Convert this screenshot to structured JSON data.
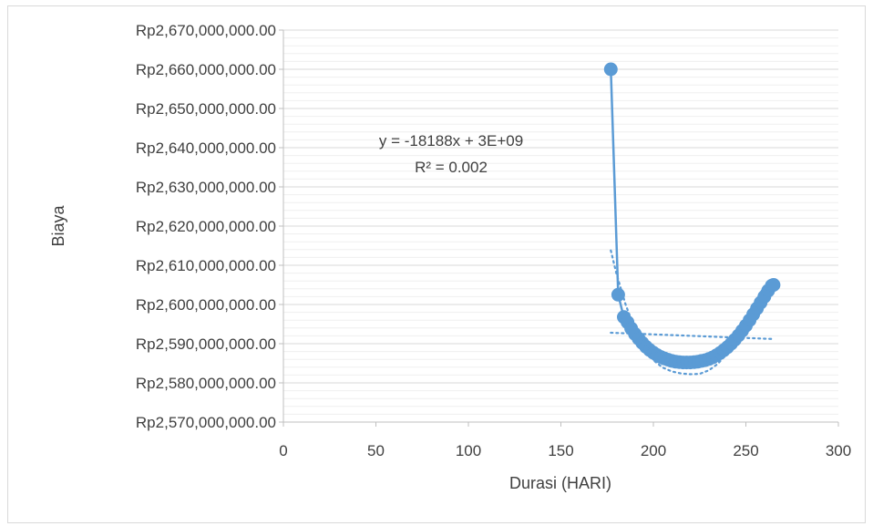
{
  "chart_data": {
    "type": "scatter",
    "title": "",
    "xlabel": "Durasi (HARI)",
    "ylabel": "Biaya",
    "xlim": [
      0,
      300
    ],
    "ylim": [
      2570000000,
      2670000000
    ],
    "x_ticks": [
      "0",
      "50",
      "100",
      "150",
      "200",
      "250",
      "300"
    ],
    "y_ticks": [
      "Rp2,570,000,000.00",
      "Rp2,580,000,000.00",
      "Rp2,590,000,000.00",
      "Rp2,600,000,000.00",
      "Rp2,610,000,000.00",
      "Rp2,620,000,000.00",
      "Rp2,630,000,000.00",
      "Rp2,640,000,000.00",
      "Rp2,650,000,000.00",
      "Rp2,660,000,000.00",
      "Rp2,670,000,000.00"
    ],
    "grid": true,
    "legend": "none",
    "series": [
      {
        "color": "#5b9bd5",
        "markers": true,
        "connect": true,
        "points": [
          [
            177,
            2660000000
          ],
          [
            181,
            2602500000
          ],
          [
            184,
            2596800000
          ],
          [
            186,
            2595500000
          ],
          [
            188,
            2593900000
          ],
          [
            190,
            2592500000
          ],
          [
            192,
            2591300000
          ],
          [
            194,
            2590200000
          ],
          [
            196,
            2589200000
          ],
          [
            198,
            2588400000
          ],
          [
            200,
            2587700000
          ],
          [
            202,
            2587100000
          ],
          [
            204,
            2586600000
          ],
          [
            206,
            2586200000
          ],
          [
            208,
            2585900000
          ],
          [
            210,
            2585600000
          ],
          [
            212,
            2585400000
          ],
          [
            214,
            2585300000
          ],
          [
            216,
            2585200000
          ],
          [
            218,
            2585200000
          ],
          [
            220,
            2585200000
          ],
          [
            222,
            2585300000
          ],
          [
            224,
            2585400000
          ],
          [
            226,
            2585600000
          ],
          [
            228,
            2585800000
          ],
          [
            230,
            2586100000
          ],
          [
            232,
            2586500000
          ],
          [
            234,
            2587000000
          ],
          [
            236,
            2587600000
          ],
          [
            238,
            2588300000
          ],
          [
            240,
            2589100000
          ],
          [
            242,
            2590000000
          ],
          [
            244,
            2591000000
          ],
          [
            246,
            2592100000
          ],
          [
            248,
            2593300000
          ],
          [
            250,
            2594600000
          ],
          [
            252,
            2596000000
          ],
          [
            254,
            2597500000
          ],
          [
            256,
            2599000000
          ],
          [
            258,
            2600500000
          ],
          [
            260,
            2602000000
          ],
          [
            262,
            2603500000
          ],
          [
            264,
            2604800000
          ],
          [
            265,
            2605000000
          ]
        ]
      }
    ],
    "trendlines": [
      {
        "kind": "linear",
        "color": "#5b9bd5",
        "points": [
          [
            177,
            2592800000
          ],
          [
            264,
            2591200000
          ]
        ]
      },
      {
        "kind": "polynomial",
        "color": "#5b9bd5",
        "points": [
          [
            177,
            2613800000
          ],
          [
            180,
            2607900000
          ],
          [
            185,
            2600000000
          ],
          [
            190,
            2593700000
          ],
          [
            195,
            2589000000
          ],
          [
            200,
            2585800000
          ],
          [
            205,
            2583900000
          ],
          [
            210,
            2582900000
          ],
          [
            215,
            2582400000
          ],
          [
            220,
            2582200000
          ],
          [
            225,
            2582300000
          ],
          [
            230,
            2583200000
          ],
          [
            235,
            2584900000
          ],
          [
            240,
            2587700000
          ],
          [
            245,
            2591400000
          ],
          [
            250,
            2596000000
          ],
          [
            255,
            2600500000
          ],
          [
            260,
            2604700000
          ],
          [
            265,
            2606400000
          ]
        ]
      }
    ],
    "annotations": [
      {
        "text_line1": "y = -18188x + 3E+09",
        "text_line2": "R² = 0.002"
      }
    ]
  }
}
